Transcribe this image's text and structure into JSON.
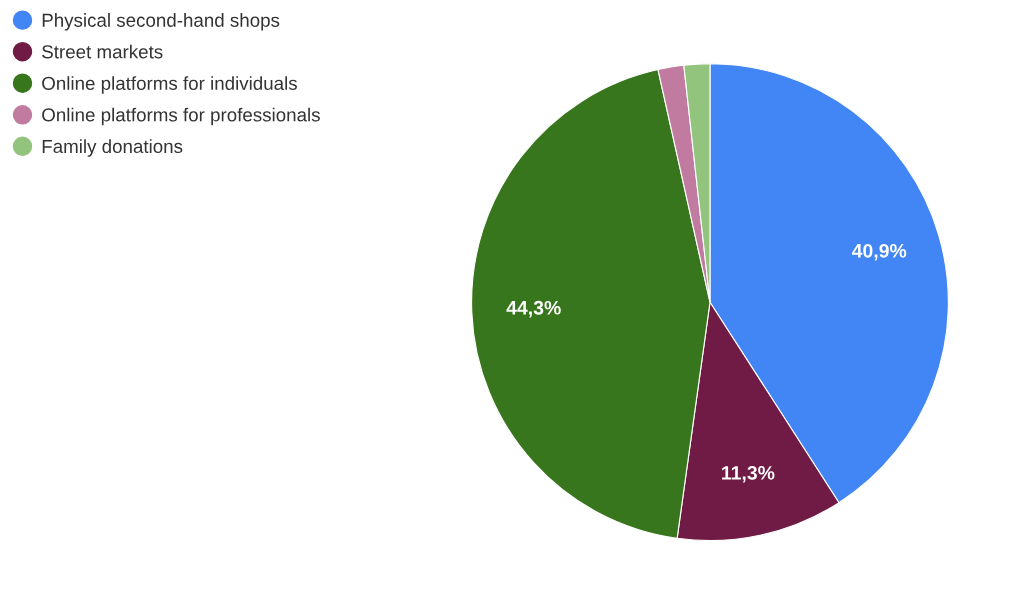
{
  "chart_data": {
    "type": "pie",
    "categories": [
      "Physical second-hand shops",
      "Street markets",
      "Online platforms for individuals",
      "Online platforms for professionals",
      "Family donations"
    ],
    "values": [
      40.9,
      11.3,
      44.3,
      1.75,
      1.75
    ],
    "colors": [
      "#4285f4",
      "#701b45",
      "#38761d",
      "#c27ba0",
      "#93c47d"
    ],
    "value_labels": [
      "40,9%",
      "11,3%",
      "44,3%",
      null,
      null
    ],
    "legend": "top left"
  }
}
